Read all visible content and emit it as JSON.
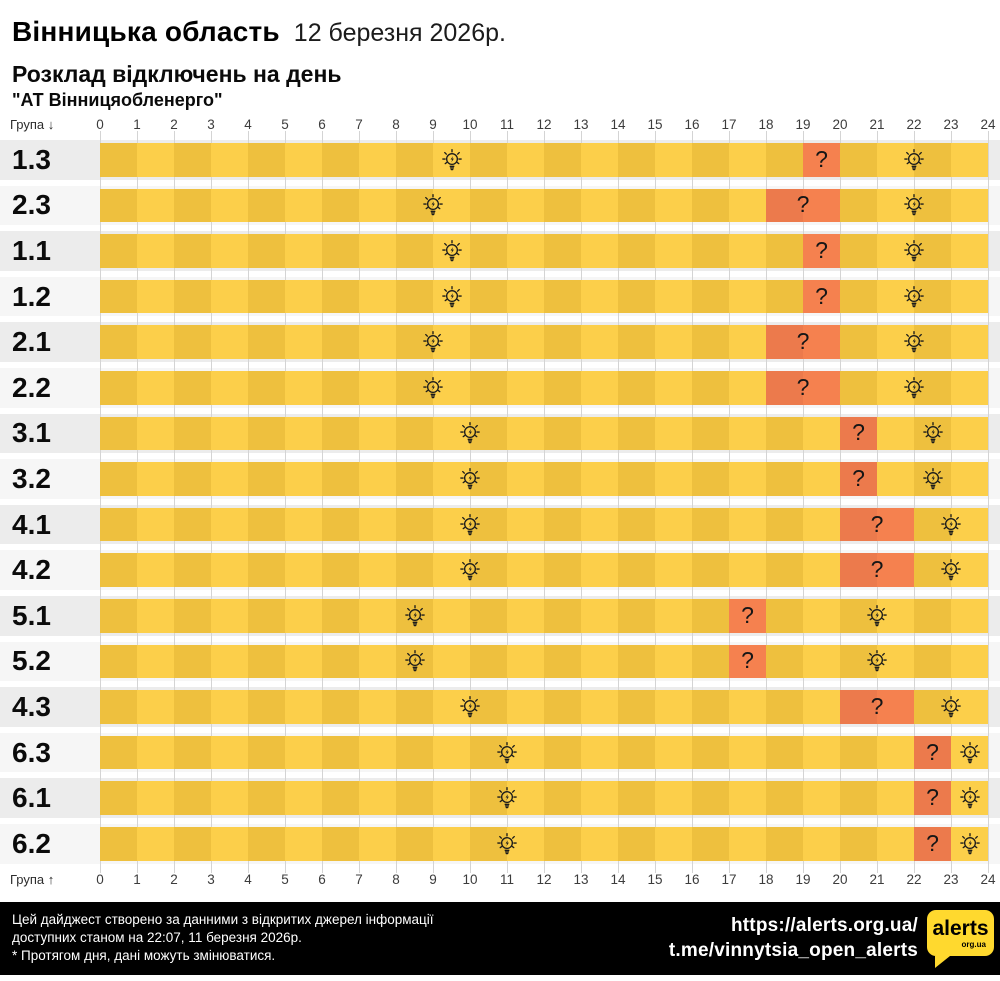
{
  "header": {
    "region": "Вінницька область",
    "date": "12 березня 2026р.",
    "subtitle": "Розклад відключень на день",
    "provider": "\"АТ Вінницяобленерго\""
  },
  "axis": {
    "group_label_top": "Група ↓",
    "group_label_bottom": "Група ↑",
    "hours": [
      0,
      1,
      2,
      3,
      4,
      5,
      6,
      7,
      8,
      9,
      10,
      11,
      12,
      13,
      14,
      15,
      16,
      17,
      18,
      19,
      20,
      21,
      22,
      23,
      24
    ]
  },
  "chart_data": {
    "type": "heatmap",
    "title": "Розклад відключень на день",
    "xlabel": "",
    "ylabel": "Група",
    "x_range": [
      0,
      24
    ],
    "x_step": 1,
    "uncertain_label": "?",
    "bulb_marker_icon": "lightbulb-rays-icon",
    "rows": [
      {
        "group": "1.3",
        "bulbs": [
          9.5,
          22.0
        ],
        "uncertain": [
          19,
          20
        ]
      },
      {
        "group": "2.3",
        "bulbs": [
          9.0,
          22.0
        ],
        "uncertain": [
          18,
          20
        ]
      },
      {
        "group": "1.1",
        "bulbs": [
          9.5,
          22.0
        ],
        "uncertain": [
          19,
          20
        ]
      },
      {
        "group": "1.2",
        "bulbs": [
          9.5,
          22.0
        ],
        "uncertain": [
          19,
          20
        ]
      },
      {
        "group": "2.1",
        "bulbs": [
          9.0,
          22.0
        ],
        "uncertain": [
          18,
          20
        ]
      },
      {
        "group": "2.2",
        "bulbs": [
          9.0,
          22.0
        ],
        "uncertain": [
          18,
          20
        ]
      },
      {
        "group": "3.1",
        "bulbs": [
          10.0,
          22.5
        ],
        "uncertain": [
          20,
          21
        ]
      },
      {
        "group": "3.2",
        "bulbs": [
          10.0,
          22.5
        ],
        "uncertain": [
          20,
          21
        ]
      },
      {
        "group": "4.1",
        "bulbs": [
          10.0,
          23.0
        ],
        "uncertain": [
          20,
          22
        ]
      },
      {
        "group": "4.2",
        "bulbs": [
          10.0,
          23.0
        ],
        "uncertain": [
          20,
          22
        ]
      },
      {
        "group": "5.1",
        "bulbs": [
          8.5,
          21.0
        ],
        "uncertain": [
          17,
          18
        ]
      },
      {
        "group": "5.2",
        "bulbs": [
          8.5,
          21.0
        ],
        "uncertain": [
          17,
          18
        ]
      },
      {
        "group": "4.3",
        "bulbs": [
          10.0,
          23.0
        ],
        "uncertain": [
          20,
          22
        ]
      },
      {
        "group": "6.3",
        "bulbs": [
          11.0,
          23.5
        ],
        "uncertain": [
          22,
          23
        ]
      },
      {
        "group": "6.1",
        "bulbs": [
          11.0,
          23.5
        ],
        "uncertain": [
          22,
          23
        ]
      },
      {
        "group": "6.2",
        "bulbs": [
          11.0,
          23.5
        ],
        "uncertain": [
          22,
          23
        ]
      }
    ]
  },
  "colors": {
    "cell_even": "#EEC03E",
    "cell_odd": "#FCCF4A",
    "uncertain_even": "#EC7A4C",
    "uncertain_odd": "#F5814F",
    "row_bg_a": "#ECECEC",
    "row_bg_b": "#F6F6F6",
    "footer_bg": "#000000",
    "logo_yellow": "#FFD92E"
  },
  "footer": {
    "line1": "Цей дайджест створено за данними з відкритих джерел інформації",
    "line2": "доступних станом на 22:07, 11 березня 2026р.",
    "line3": "* Протягом дня, дані можуть змінюватися.",
    "url1": "https://alerts.org.ua/",
    "url2": "t.me/vinnytsia_open_alerts",
    "logo_text": "alerts",
    "logo_sub": "org.ua"
  }
}
